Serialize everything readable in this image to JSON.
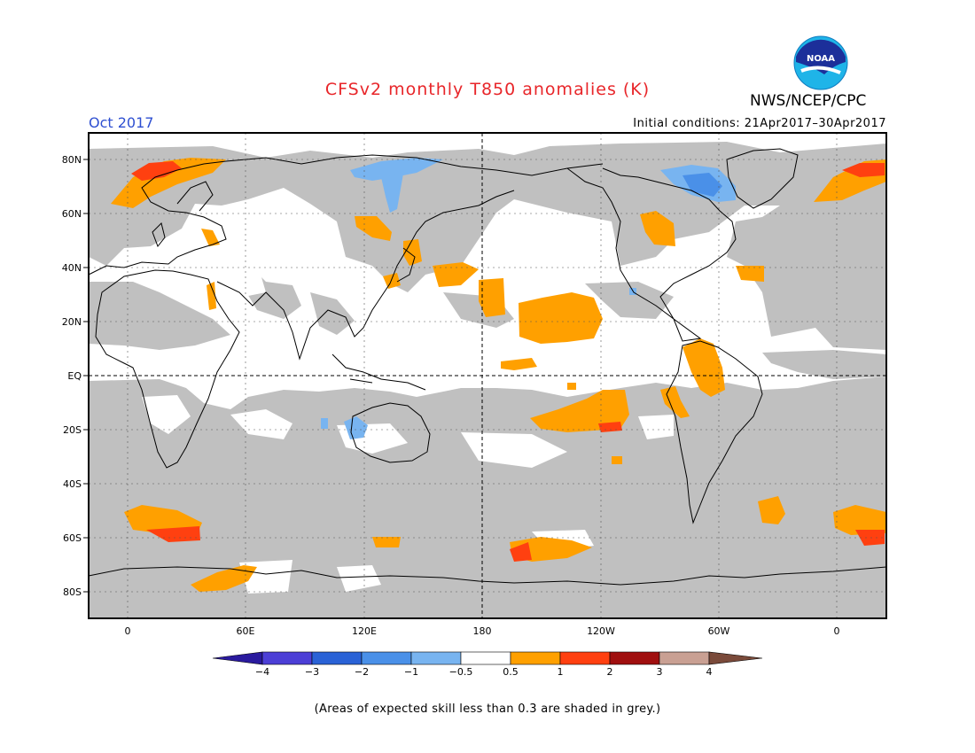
{
  "title": "CFSv2 monthly T850 anomalies (K)",
  "month_label": "Oct 2017",
  "initial_conditions": "Initial conditions: 21Apr2017–30Apr2017",
  "agency": "NWS/NCEP/CPC",
  "logo": {
    "text": "NOAA",
    "icon": "noaa-logo-icon"
  },
  "latitude_labels": [
    "80N",
    "60N",
    "40N",
    "20N",
    "EQ",
    "20S",
    "40S",
    "60S",
    "80S"
  ],
  "longitude_labels": [
    "0",
    "60E",
    "120E",
    "180",
    "120W",
    "60W",
    "0"
  ],
  "colorbar_labels": [
    "−4",
    "−3",
    "−2",
    "−1",
    "−0.5",
    "0.5",
    "1",
    "2",
    "3",
    "4"
  ],
  "colors": {
    "low_skill_grey": "#c0c0c0",
    "anom_0_5_1": "#ffa000",
    "anom_1_2": "#ff4010",
    "anom_neg_0_5_1": "#78b4f0",
    "anom_neg_1_2": "#4a90e8",
    "title_red": "#e8262a",
    "month_blue": "#2e4fd1"
  },
  "colorbar_colors": [
    "#2a1a9e",
    "#4c3fd6",
    "#2a62d6",
    "#4a90e8",
    "#78b4f0",
    "#ffffff",
    "#ffa000",
    "#ff4010",
    "#a00f0f",
    "#c9a093",
    "#7a4a3a"
  ],
  "footnote": "(Areas of expected skill less than 0.3 are shaded in grey.)"
}
